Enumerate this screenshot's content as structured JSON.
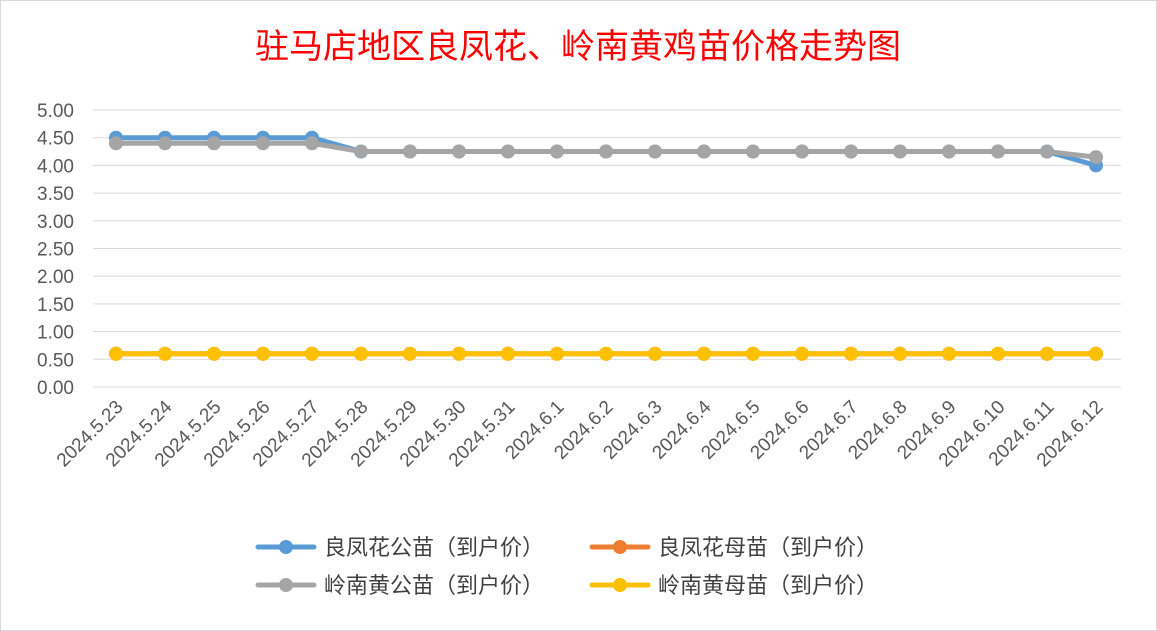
{
  "chart_data": {
    "type": "line",
    "title": "驻马店地区良凤花、岭南黄鸡苗价格走势图",
    "xlabel": "",
    "ylabel": "",
    "ylim": [
      0,
      5
    ],
    "y_ticks": [
      "0.00",
      "0.50",
      "1.00",
      "1.50",
      "2.00",
      "2.50",
      "3.00",
      "3.50",
      "4.00",
      "4.50",
      "5.00"
    ],
    "grid": true,
    "legend_position": "bottom",
    "categories": [
      "2024.5.23",
      "2024.5.24",
      "2024.5.25",
      "2024.5.26",
      "2024.5.27",
      "2024.5.28",
      "2024.5.29",
      "2024.5.30",
      "2024.5.31",
      "2024.6.1",
      "2024.6.2",
      "2024.6.3",
      "2024.6.4",
      "2024.6.5",
      "2024.6.6",
      "2024.6.7",
      "2024.6.8",
      "2024.6.9",
      "2024.6.10",
      "2024.6.11",
      "2024.6.12"
    ],
    "series": [
      {
        "name": "良凤花公苗（到户价）",
        "color": "#5B9BD5",
        "values": [
          4.5,
          4.5,
          4.5,
          4.5,
          4.5,
          4.25,
          4.25,
          4.25,
          4.25,
          4.25,
          4.25,
          4.25,
          4.25,
          4.25,
          4.25,
          4.25,
          4.25,
          4.25,
          4.25,
          4.25,
          4.0
        ]
      },
      {
        "name": "良凤花母苗（到户价）",
        "color": "#ED7D31",
        "values": [
          0.6,
          0.6,
          0.6,
          0.6,
          0.6,
          0.6,
          0.6,
          0.6,
          0.6,
          0.6,
          0.6,
          0.6,
          0.6,
          0.6,
          0.6,
          0.6,
          0.6,
          0.6,
          0.6,
          0.6,
          0.6
        ]
      },
      {
        "name": "岭南黄公苗（到户价）",
        "color": "#A5A5A5",
        "values": [
          4.4,
          4.4,
          4.4,
          4.4,
          4.4,
          4.25,
          4.25,
          4.25,
          4.25,
          4.25,
          4.25,
          4.25,
          4.25,
          4.25,
          4.25,
          4.25,
          4.25,
          4.25,
          4.25,
          4.25,
          4.15
        ]
      },
      {
        "name": "岭南黄母苗（到户价）",
        "color": "#FFC000",
        "values": [
          0.6,
          0.6,
          0.6,
          0.6,
          0.6,
          0.6,
          0.6,
          0.6,
          0.6,
          0.6,
          0.6,
          0.6,
          0.6,
          0.6,
          0.6,
          0.6,
          0.6,
          0.6,
          0.6,
          0.6,
          0.6
        ]
      }
    ],
    "title_color": "#FF0000",
    "axis_text_color": "#595959",
    "grid_color": "#D9D9D9"
  }
}
